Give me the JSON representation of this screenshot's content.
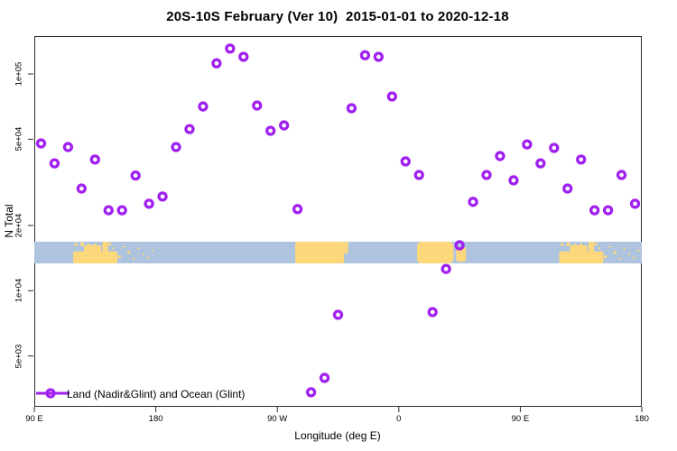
{
  "chart_data": {
    "type": "scatter",
    "title": "20S-10S February (Ver 10)  2015-01-01 to 2020-12-18",
    "xlabel": "Longitude (deg E)",
    "ylabel": "N Total",
    "grid": false,
    "x_axis": {
      "lim": [
        90,
        540
      ],
      "ticks": [
        {
          "pos": 90,
          "label": "90 E"
        },
        {
          "pos": 180,
          "label": "180"
        },
        {
          "pos": 270,
          "label": "90 W"
        },
        {
          "pos": 360,
          "label": "0"
        },
        {
          "pos": 450,
          "label": "90 E"
        },
        {
          "pos": 540,
          "label": "180"
        }
      ]
    },
    "y_axis": {
      "scale": "log",
      "lim": [
        2941,
        149600
      ],
      "ticks": [
        {
          "value": 100000,
          "label": "1e+05"
        },
        {
          "value": 50000,
          "label": "5e+04"
        },
        {
          "value": 20000,
          "label": "2e+04"
        },
        {
          "value": 10000,
          "label": "1e+04"
        },
        {
          "value": 5000,
          "label": "5e+03"
        }
      ]
    },
    "legend": {
      "label": "Land (Nadir&Glint) and Ocean (Glint)",
      "position": "bottom-left"
    },
    "series": [
      {
        "name": "n-total-by-longitude",
        "color": "#A020F0",
        "marker": "open-circle",
        "points": [
          [
            95,
            47800
          ],
          [
            105,
            38700
          ],
          [
            115,
            46000
          ],
          [
            125,
            29600
          ],
          [
            135,
            40300
          ],
          [
            145,
            23500
          ],
          [
            155,
            23500
          ],
          [
            165,
            34000
          ],
          [
            175,
            25200
          ],
          [
            185,
            27200
          ],
          [
            195,
            46000
          ],
          [
            205,
            55700
          ],
          [
            215,
            70800
          ],
          [
            225,
            112000
          ],
          [
            235,
            131000
          ],
          [
            245,
            120000
          ],
          [
            255,
            71500
          ],
          [
            265,
            54700
          ],
          [
            275,
            57900
          ],
          [
            285,
            23800
          ],
          [
            295,
            3400
          ],
          [
            305,
            3960
          ],
          [
            315,
            7740
          ],
          [
            325,
            69500
          ],
          [
            335,
            122000
          ],
          [
            345,
            120000
          ],
          [
            355,
            78700
          ],
          [
            365,
            39500
          ],
          [
            375,
            34200
          ],
          [
            385,
            7970
          ],
          [
            395,
            12600
          ],
          [
            405,
            16200
          ],
          [
            415,
            25700
          ],
          [
            425,
            34200
          ],
          [
            435,
            41800
          ],
          [
            445,
            32300
          ],
          [
            455,
            47300
          ],
          [
            465,
            38700
          ],
          [
            475,
            45600
          ],
          [
            485,
            29600
          ],
          [
            495,
            40300
          ],
          [
            505,
            23500
          ],
          [
            515,
            23500
          ],
          [
            525,
            34200
          ],
          [
            535,
            25200
          ]
        ]
      }
    ],
    "map_band": {
      "description": "20S-10S latitude strip map: ocean with land masses",
      "ocean_color": "#AEC3DE",
      "land_color": "#FDD87B",
      "top_value": 16830,
      "bottom_value": 13370,
      "land_blobs": [
        {
          "name": "australia-base",
          "from": 118.8,
          "to": 151.5,
          "y0": 0.45,
          "y1": 1.0,
          "r": 2,
          "wrap": true
        },
        {
          "name": "australia-bump",
          "from": 126.8,
          "to": 139.5,
          "y0": 0.17,
          "y1": 1.0,
          "r": 2,
          "wrap": true
        },
        {
          "name": "australia-spike",
          "from": 140.5,
          "to": 144.5,
          "y0": 0.0,
          "y1": 1.0,
          "r": 1,
          "wrap": true
        },
        {
          "name": "south-america",
          "from": 283.3,
          "to": 319.5,
          "y0": 0.0,
          "y1": 1.0,
          "r": 2,
          "wrap": false
        },
        {
          "name": "south-america-tail",
          "from": 319.5,
          "to": 322.5,
          "y0": 0.0,
          "y1": 0.55,
          "r": 1,
          "wrap": false
        },
        {
          "name": "africa",
          "from": 373.5,
          "to": 400.5,
          "y0": 0.0,
          "y1": 1.0,
          "r": 5,
          "wrap": false
        },
        {
          "name": "madagascar",
          "from": 402.5,
          "to": 409.8,
          "y0": 0.25,
          "y1": 0.92,
          "r": 3,
          "wrap": false
        }
      ],
      "land_spots": [
        [
          121.0,
          0.08,
          3
        ],
        [
          125.5,
          0.04,
          4
        ],
        [
          130.5,
          0.12,
          3
        ],
        [
          135.0,
          0.1,
          3
        ],
        [
          145.8,
          0.06,
          3
        ],
        [
          148.5,
          0.28,
          2
        ],
        [
          153.0,
          0.72,
          3
        ],
        [
          156.5,
          0.2,
          2
        ],
        [
          160.0,
          0.5,
          3
        ],
        [
          163.5,
          0.82,
          2
        ],
        [
          167.0,
          0.3,
          2
        ],
        [
          170.5,
          0.58,
          2
        ],
        [
          174.0,
          0.76,
          2
        ],
        [
          177.5,
          0.4,
          2
        ]
      ]
    }
  }
}
